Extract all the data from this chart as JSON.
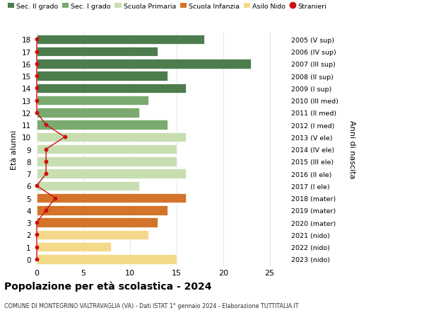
{
  "ages": [
    18,
    17,
    16,
    15,
    14,
    13,
    12,
    11,
    10,
    9,
    8,
    7,
    6,
    5,
    4,
    3,
    2,
    1,
    0
  ],
  "anni": [
    "2005 (V sup)",
    "2006 (IV sup)",
    "2007 (III sup)",
    "2008 (II sup)",
    "2009 (I sup)",
    "2010 (III med)",
    "2011 (II med)",
    "2012 (I med)",
    "2013 (V ele)",
    "2014 (IV ele)",
    "2015 (III ele)",
    "2016 (II ele)",
    "2017 (I ele)",
    "2018 (mater)",
    "2019 (mater)",
    "2020 (mater)",
    "2021 (nido)",
    "2022 (nido)",
    "2023 (nido)"
  ],
  "values": [
    18,
    13,
    23,
    14,
    16,
    12,
    11,
    14,
    16,
    15,
    15,
    16,
    11,
    16,
    14,
    13,
    12,
    8,
    15
  ],
  "stranieri": [
    0,
    0,
    0,
    0,
    0,
    0,
    0,
    1,
    3,
    1,
    1,
    1,
    0,
    2,
    1,
    0,
    0,
    0,
    0
  ],
  "bar_colors": [
    "#4d7c4d",
    "#4d7c4d",
    "#4d7c4d",
    "#4d7c4d",
    "#4d7c4d",
    "#7aaa6d",
    "#7aaa6d",
    "#7aaa6d",
    "#c8deb0",
    "#c8deb0",
    "#c8deb0",
    "#c8deb0",
    "#c8deb0",
    "#d4732a",
    "#d4732a",
    "#d4732a",
    "#f5d98b",
    "#f5d98b",
    "#f5d98b"
  ],
  "legend_labels": [
    "Sec. II grado",
    "Sec. I grado",
    "Scuola Primaria",
    "Scuola Infanzia",
    "Asilo Nido",
    "Stranieri"
  ],
  "legend_colors": [
    "#4d7c4d",
    "#7aaa6d",
    "#c8deb0",
    "#d4732a",
    "#f5d98b",
    "#cc1111"
  ],
  "title": "Popolazione per età scolastica - 2024",
  "subtitle": "COMUNE DI MONTEGRINO VALTRAVAGLIA (VA) - Dati ISTAT 1° gennaio 2024 - Elaborazione TUTTITALIA.IT",
  "ylabel": "Età alunni",
  "right_label": "Anni di nascita",
  "xlabel_ticks": [
    0,
    5,
    10,
    15,
    20,
    25
  ],
  "stranieri_color": "#cc1111",
  "grid_color": "#cccccc",
  "bg_color": "#ffffff"
}
